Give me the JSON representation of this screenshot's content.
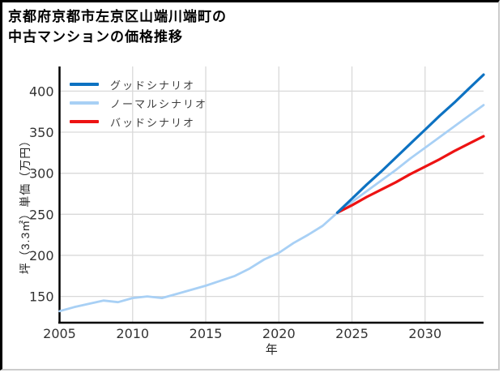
{
  "title": "京都府京都市左京区山端川端町の\n中古マンションの価格推移",
  "chart_data": {
    "type": "line",
    "title": "京都府京都市左京区山端川端町の中古マンションの価格推移",
    "xlabel": "年",
    "ylabel": "坪（3.3㎡）単価（万円）",
    "xlim": [
      2005,
      2034
    ],
    "ylim": [
      118,
      430
    ],
    "xticks": [
      2005,
      2010,
      2015,
      2020,
      2025,
      2030
    ],
    "yticks": [
      150,
      200,
      250,
      300,
      350,
      400
    ],
    "grid": true,
    "grid_color": "#d9d9d9",
    "axis_color": "#000000",
    "tick_label_color": "#333333",
    "legend_position": "upper-left",
    "legend": [
      {
        "id": "good",
        "label": "グッドシナリオ",
        "color": "#0d72c2"
      },
      {
        "id": "normal",
        "label": "ノーマルシナリオ",
        "color": "#a8d0f5"
      },
      {
        "id": "bad",
        "label": "バッドシナリオ",
        "color": "#ed1313"
      }
    ],
    "series": [
      {
        "id": "normal",
        "name": "ノーマルシナリオ",
        "color": "#a8d0f5",
        "width": 2.8,
        "x": [
          2005,
          2006,
          2007,
          2008,
          2009,
          2010,
          2011,
          2012,
          2013,
          2014,
          2015,
          2016,
          2017,
          2018,
          2019,
          2020,
          2021,
          2022,
          2023,
          2024,
          2025,
          2026,
          2027,
          2028,
          2029,
          2030,
          2031,
          2032,
          2033,
          2034
        ],
        "values": [
          132,
          137,
          141,
          145,
          143,
          148,
          150,
          148,
          153,
          158,
          163,
          169,
          175,
          184,
          195,
          203,
          215,
          225,
          236,
          252,
          265,
          278,
          291,
          304,
          318,
          331,
          344,
          357,
          370,
          383
        ]
      },
      {
        "id": "bad",
        "name": "バッドシナリオ",
        "color": "#ed1313",
        "width": 3.2,
        "x": [
          2024,
          2025,
          2026,
          2027,
          2028,
          2029,
          2030,
          2031,
          2032,
          2033,
          2034
        ],
        "values": [
          252,
          261,
          271,
          280,
          289,
          299,
          308,
          317,
          327,
          336,
          345
        ]
      },
      {
        "id": "good",
        "name": "グッドシナリオ",
        "color": "#0d72c2",
        "width": 3.2,
        "x": [
          2024,
          2025,
          2026,
          2027,
          2028,
          2029,
          2030,
          2031,
          2032,
          2033,
          2034
        ],
        "values": [
          252,
          269,
          286,
          302,
          319,
          336,
          353,
          370,
          386,
          403,
          420
        ]
      }
    ]
  }
}
